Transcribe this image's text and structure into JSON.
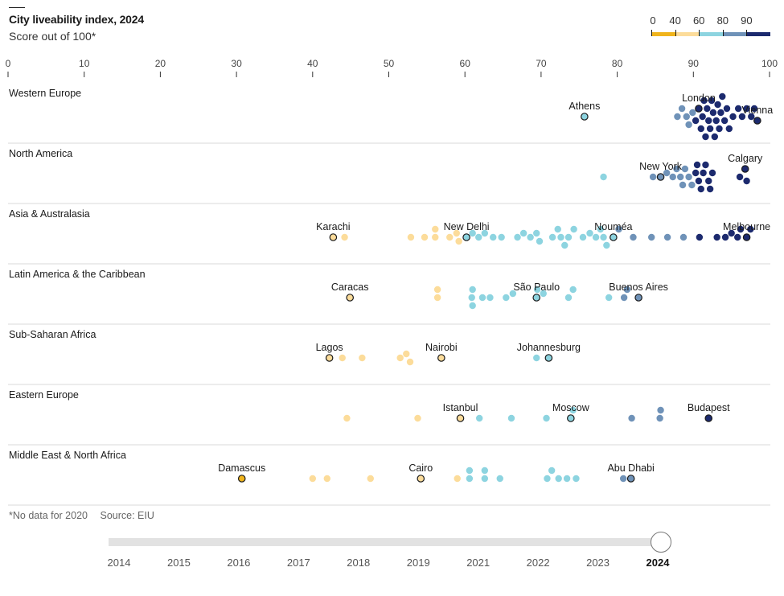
{
  "header": {
    "title": "City liveability index, 2024",
    "subtitle": "Score out of 100*"
  },
  "legend": {
    "breaks": [
      "0",
      "40",
      "60",
      "80",
      "90"
    ],
    "colors": [
      "#f0b41c",
      "#fcdc9a",
      "#8dd4e0",
      "#6f92b8",
      "#1c2a6e"
    ]
  },
  "footer": {
    "note": "*No data for 2020",
    "source": "Source: EIU"
  },
  "timeline": {
    "years": [
      "2014",
      "2015",
      "2016",
      "2017",
      "2018",
      "2019",
      "2021",
      "2022",
      "2023",
      "2024"
    ],
    "selected": "2024"
  },
  "chart_data": {
    "type": "scatter",
    "title": "City liveability index, 2024",
    "subtitle": "Score out of 100*",
    "xlabel": "",
    "xlim": [
      0,
      100
    ],
    "xticks": [
      "0",
      "10",
      "20",
      "30",
      "40",
      "50",
      "60",
      "70",
      "80",
      "90",
      "100"
    ],
    "color_scale": [
      {
        "from": 0,
        "to": 40,
        "color": "#f0b41c"
      },
      {
        "from": 40,
        "to": 60,
        "color": "#fcdc9a"
      },
      {
        "from": 60,
        "to": 80,
        "color": "#8dd4e0"
      },
      {
        "from": 80,
        "to": 90,
        "color": "#6f92b8"
      },
      {
        "from": 90,
        "to": 100,
        "color": "#1c2a6e"
      }
    ],
    "regions": [
      {
        "name": "Western Europe",
        "labeled": [
          {
            "city": "Athens",
            "score": 75.7
          },
          {
            "city": "London",
            "score": 90.7
          },
          {
            "city": "Vienna",
            "score": 98.4
          }
        ],
        "scores": [
          75.7,
          87.9,
          88.5,
          89.1,
          89.4,
          89.9,
          90.3,
          90.7,
          91.0,
          91.2,
          91.4,
          91.6,
          91.8,
          92.0,
          92.2,
          92.4,
          92.6,
          92.8,
          93.0,
          93.2,
          93.4,
          93.6,
          93.8,
          94.1,
          94.4,
          94.7,
          95.2,
          95.9,
          96.4,
          97.0,
          97.6,
          98.0,
          98.4
        ]
      },
      {
        "name": "North America",
        "labeled": [
          {
            "city": "New York",
            "score": 85.7
          },
          {
            "city": "Calgary",
            "score": 96.8
          }
        ],
        "scores": [
          78.2,
          84.7,
          85.7,
          86.5,
          87.3,
          87.8,
          88.3,
          88.6,
          88.9,
          89.4,
          89.8,
          90.3,
          90.5,
          90.7,
          91.0,
          91.3,
          91.6,
          92.0,
          92.2,
          92.5,
          96.1,
          96.8,
          97.0
        ]
      },
      {
        "name": "Asia & Australasia",
        "labeled": [
          {
            "city": "Karachi",
            "score": 42.7
          },
          {
            "city": "New Delhi",
            "score": 60.2
          },
          {
            "city": "Nouméa",
            "score": 79.5
          },
          {
            "city": "Melbourne",
            "score": 97.0
          }
        ],
        "scores": [
          42.7,
          44.2,
          52.9,
          54.7,
          56.1,
          56.1,
          58.0,
          58.9,
          59.2,
          60.2,
          61.0,
          61.8,
          62.6,
          63.7,
          64.8,
          66.9,
          67.7,
          68.6,
          69.4,
          69.8,
          71.5,
          72.2,
          72.6,
          73.1,
          73.6,
          74.3,
          75.5,
          76.4,
          77.2,
          77.8,
          78.2,
          78.6,
          79.5,
          80.2,
          82.1,
          84.5,
          86.6,
          88.7,
          90.8,
          93.1,
          94.2,
          95.0,
          95.8,
          96.2,
          97.0,
          97.5
        ]
      },
      {
        "name": "Latin America & the Caribbean",
        "labeled": [
          {
            "city": "Caracas",
            "score": 44.9
          },
          {
            "city": "São Paulo",
            "score": 69.4
          },
          {
            "city": "Buenos Aires",
            "score": 82.8
          }
        ],
        "scores": [
          44.9,
          56.4,
          56.4,
          60.9,
          61.0,
          61.0,
          62.3,
          63.3,
          65.4,
          66.3,
          69.4,
          69.5,
          70.3,
          73.6,
          74.2,
          78.9,
          80.9,
          81.3,
          82.8
        ]
      },
      {
        "name": "Sub-Saharan Africa",
        "labeled": [
          {
            "city": "Lagos",
            "score": 42.2
          },
          {
            "city": "Nairobi",
            "score": 56.9
          },
          {
            "city": "Johannesburg",
            "score": 71.0
          }
        ],
        "scores": [
          42.2,
          43.9,
          46.5,
          51.5,
          52.3,
          52.8,
          56.9,
          69.4,
          71.0
        ]
      },
      {
        "name": "Eastern Europe",
        "labeled": [
          {
            "city": "Istanbul",
            "score": 59.4
          },
          {
            "city": "Moscow",
            "score": 73.9
          },
          {
            "city": "Budapest",
            "score": 92.0
          }
        ],
        "scores": [
          44.5,
          53.8,
          59.4,
          61.9,
          66.1,
          70.7,
          74.2,
          73.9,
          81.9,
          85.6,
          85.7,
          92.0
        ]
      },
      {
        "name": "Middle East & North Africa",
        "labeled": [
          {
            "city": "Damascus",
            "score": 30.7
          },
          {
            "city": "Cairo",
            "score": 54.2
          },
          {
            "city": "Abu Dhabi",
            "score": 81.8
          }
        ],
        "scores": [
          30.7,
          40.0,
          41.9,
          47.6,
          54.2,
          59.0,
          60.6,
          60.6,
          62.6,
          62.6,
          64.6,
          70.8,
          71.4,
          72.3,
          73.4,
          74.6,
          80.8,
          81.8
        ]
      }
    ]
  }
}
